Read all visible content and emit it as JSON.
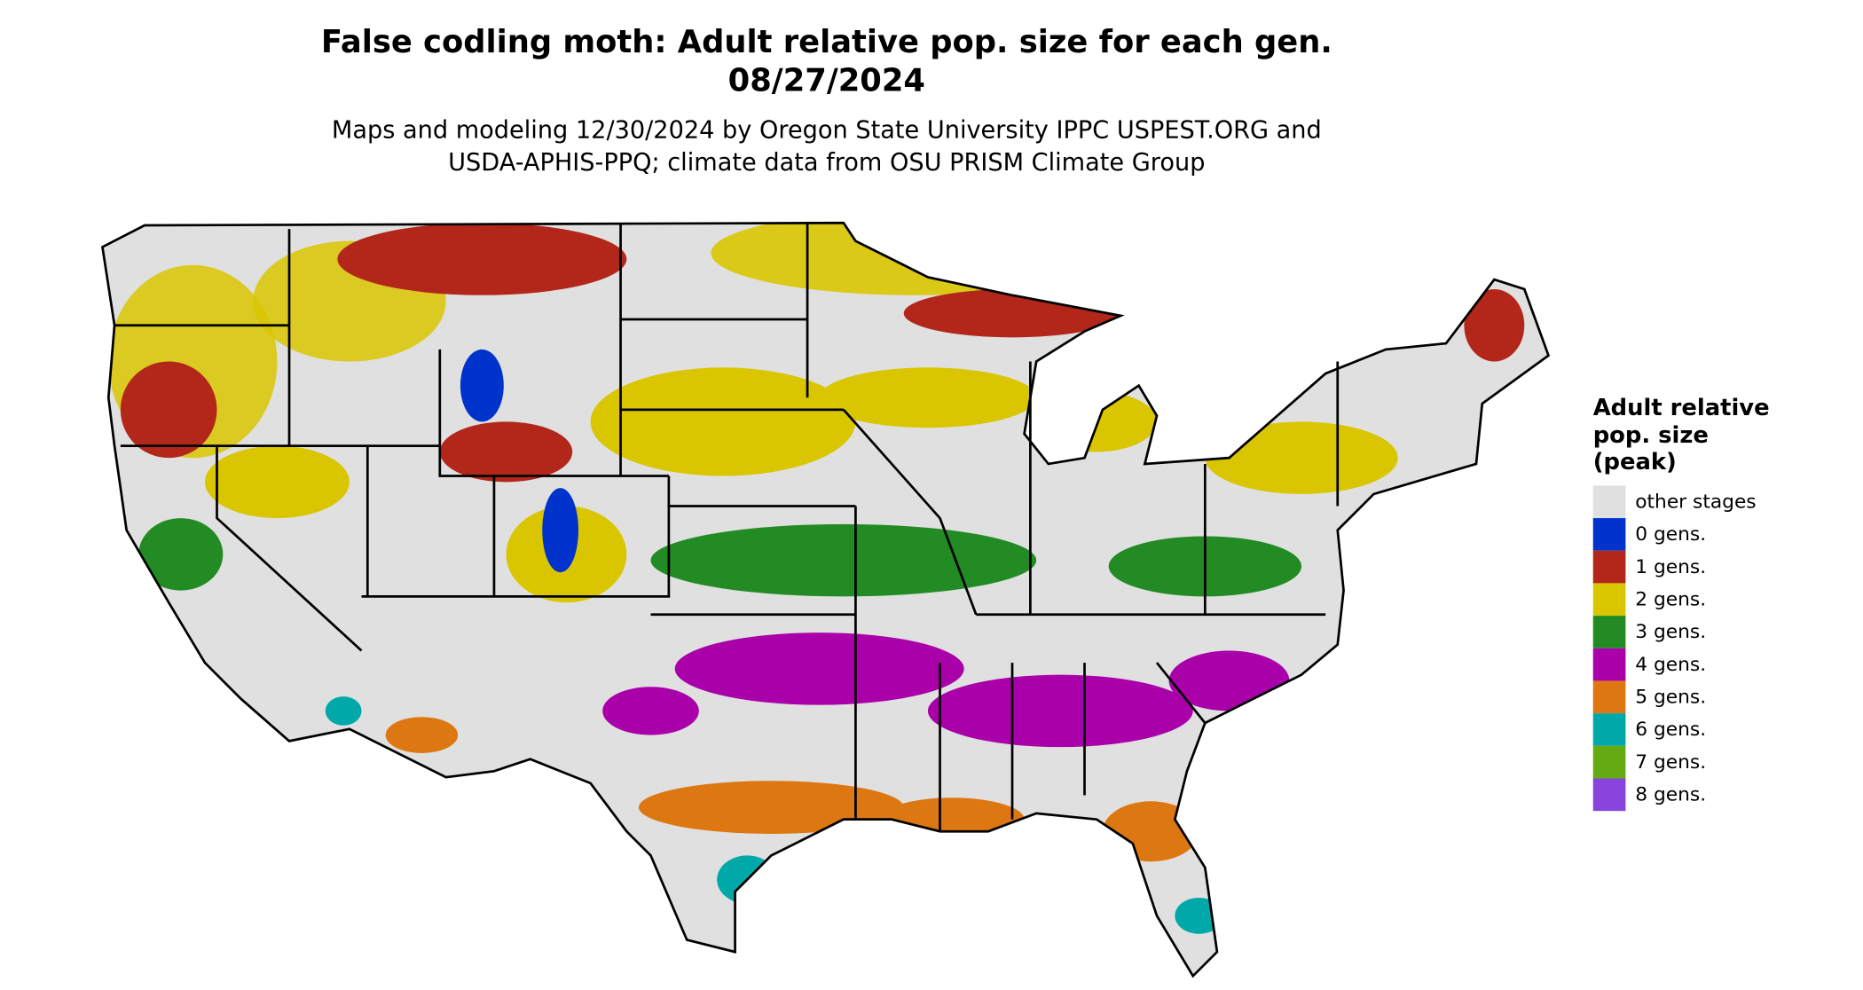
{
  "title": [
    "False codling moth: Adult relative pop. size for each gen.",
    "08/27/2024"
  ],
  "subtitle": [
    "Maps and modeling 12/30/2024 by Oregon State University IPPC USPEST.ORG and",
    "USDA-APHIS-PPQ; climate data from OSU PRISM Climate Group"
  ],
  "legend": {
    "title": [
      "Adult relative",
      "pop. size",
      "(peak)"
    ],
    "items": [
      {
        "label": "other stages",
        "color": "#e0e0e0"
      },
      {
        "label": "0 gens.",
        "color": "#0033cc"
      },
      {
        "label": "1 gens.",
        "color": "#b3261a"
      },
      {
        "label": "2 gens.",
        "color": "#d9c600"
      },
      {
        "label": "3 gens.",
        "color": "#238b23"
      },
      {
        "label": "4 gens.",
        "color": "#aa00aa"
      },
      {
        "label": "5 gens.",
        "color": "#dd7711"
      },
      {
        "label": "6 gens.",
        "color": "#00a8a8"
      },
      {
        "label": "7 gens.",
        "color": "#66aa11"
      },
      {
        "label": "8 gens.",
        "color": "#8844dd"
      }
    ]
  }
}
